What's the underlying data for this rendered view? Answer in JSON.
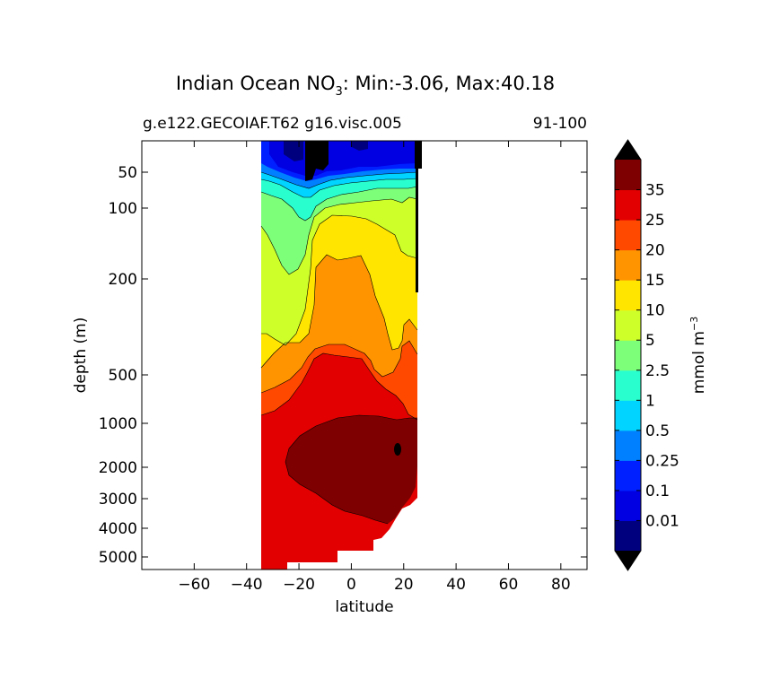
{
  "chart_data": {
    "type": "heatmap",
    "title_prefix": "Indian Ocean NO",
    "title_sub": "3",
    "title_suffix": ": Min:-3.06, Max:40.18",
    "subtitle_left": "g.e122.GECOIAF.T62 g16.visc.005",
    "subtitle_right": "91-100",
    "xlabel": "latitude",
    "ylabel": "depth (m)",
    "xticks": [
      -60,
      -40,
      -20,
      0,
      20,
      40,
      60,
      80
    ],
    "yticks": [
      {
        "value": 50,
        "label": "50"
      },
      {
        "value": 100,
        "label": "100"
      },
      {
        "value": 200,
        "label": "200"
      },
      {
        "value": 500,
        "label": "500"
      },
      {
        "value": 1000,
        "label": "1000"
      },
      {
        "value": 2000,
        "label": "2000"
      },
      {
        "value": 3000,
        "label": "3000"
      },
      {
        "value": 4000,
        "label": "4000"
      },
      {
        "value": 5000,
        "label": "5000"
      }
    ],
    "xlim": [
      -80,
      90
    ],
    "ylim_depth": [
      5500,
      10
    ],
    "data_lat_range": [
      -34,
      25
    ],
    "colorbar": {
      "label": "mmol m",
      "label_sup": "−3",
      "levels": [
        0,
        0.01,
        0.1,
        0.25,
        0.5,
        1,
        2.5,
        5,
        10,
        15,
        20,
        25,
        35,
        40
      ],
      "tick_labels": [
        "0.01",
        "0.1",
        "0.25",
        "0.5",
        "1",
        "2.5",
        "5",
        "10",
        "15",
        "20",
        "25",
        "35"
      ],
      "colors": [
        "#00007f",
        "#0000e3",
        "#0020ff",
        "#0080ff",
        "#00d4ff",
        "#29ffce",
        "#7dff7a",
        "#ceff29",
        "#ffe500",
        "#ff9400",
        "#ff4800",
        "#e30000",
        "#7f0000"
      ],
      "under_color": "#000000",
      "over_color": "#000000"
    }
  }
}
